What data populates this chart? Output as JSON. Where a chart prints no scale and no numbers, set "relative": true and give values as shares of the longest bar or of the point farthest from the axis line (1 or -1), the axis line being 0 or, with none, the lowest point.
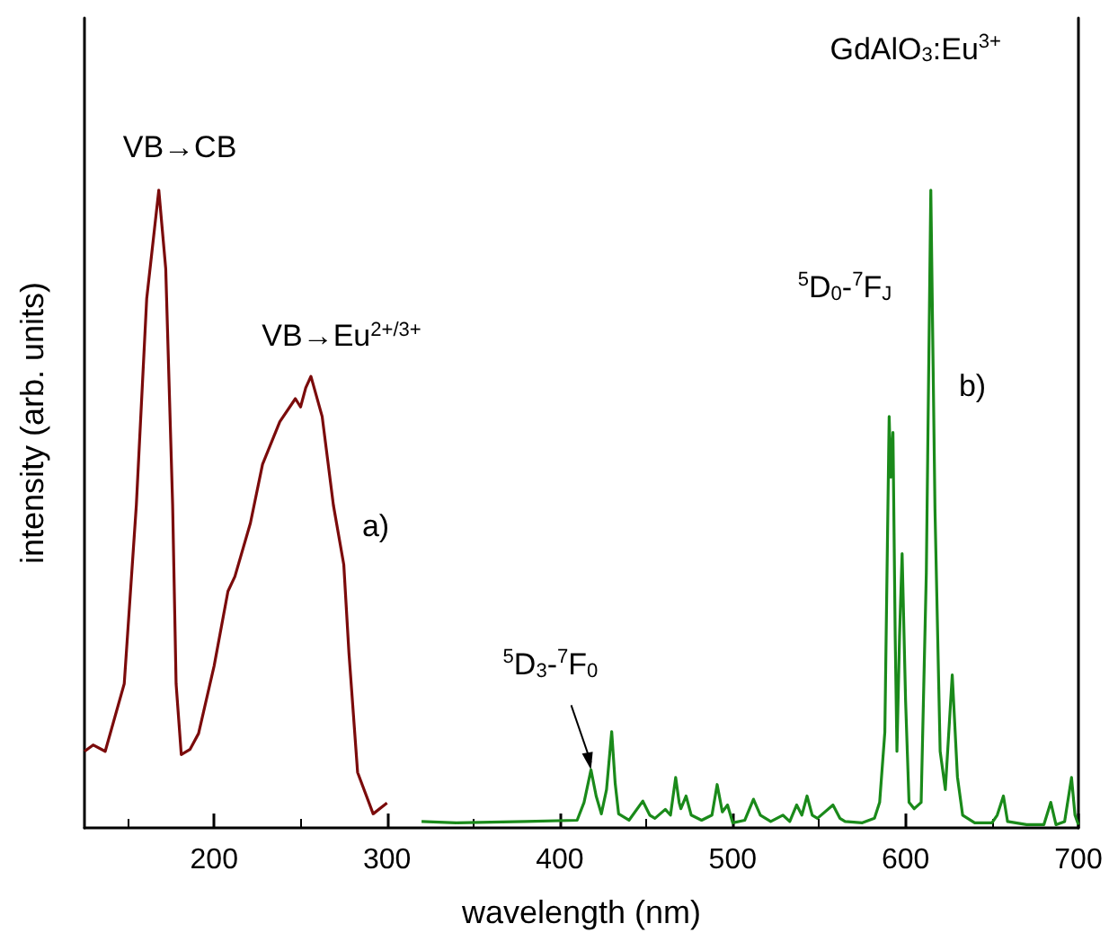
{
  "chart_data": {
    "type": "line",
    "title": "GdAlO$_{3}$:Eu$^{3+}$",
    "xlabel": "wavelength (nm)",
    "ylabel": "intensity (arb. units)",
    "relative": true,
    "xlim": [
      125,
      700
    ],
    "xticks": [
      200,
      300,
      400,
      500,
      600,
      700
    ],
    "grid": false,
    "marker": "none",
    "line_style": "solid",
    "series": [
      {
        "color": "#7b0b0b",
        "x": [
          125,
          130,
          137,
          148,
          155,
          161,
          168,
          172,
          176,
          178,
          181,
          186,
          191,
          200,
          208,
          212,
          221,
          228,
          238,
          247,
          250,
          253,
          256,
          262.5,
          269,
          275,
          278,
          283,
          292,
          300
        ],
        "values": [
          0.12,
          0.13,
          0.12,
          0.226,
          0.506,
          0.83,
          1.0,
          0.877,
          0.506,
          0.226,
          0.115,
          0.123,
          0.148,
          0.254,
          0.371,
          0.394,
          0.478,
          0.57,
          0.637,
          0.673,
          0.66,
          0.69,
          0.708,
          0.645,
          0.506,
          0.413,
          0.274,
          0.087,
          0.022,
          0.039
        ]
      },
      {
        "color": "#1a8a1a",
        "x": [
          320,
          340,
          380,
          410,
          414,
          418,
          421,
          424,
          427,
          430,
          432,
          434,
          440,
          448,
          452,
          455,
          461,
          464,
          467,
          469,
          470,
          473,
          476,
          482,
          488,
          491,
          494,
          497,
          500,
          507,
          512,
          516,
          522,
          529,
          533,
          537,
          540,
          543,
          546,
          549,
          558,
          562,
          565,
          575,
          582,
          585,
          588,
          590.5,
          591.5,
          592.7,
          594,
          595,
          596.5,
          598,
          600,
          602,
          605,
          609,
          612,
          614.6,
          617,
          620,
          623,
          627,
          630,
          633,
          640,
          650,
          653,
          656.6,
          659,
          670,
          680,
          684,
          687,
          692,
          696,
          698,
          700
        ],
        "values": [
          0.01,
          0.008,
          0.01,
          0.012,
          0.04,
          0.091,
          0.05,
          0.022,
          0.06,
          0.151,
          0.07,
          0.022,
          0.012,
          0.042,
          0.02,
          0.015,
          0.029,
          0.02,
          0.079,
          0.04,
          0.03,
          0.05,
          0.02,
          0.012,
          0.02,
          0.068,
          0.025,
          0.036,
          0.008,
          0.012,
          0.045,
          0.02,
          0.01,
          0.02,
          0.01,
          0.036,
          0.02,
          0.05,
          0.02,
          0.015,
          0.036,
          0.015,
          0.01,
          0.008,
          0.015,
          0.04,
          0.15,
          0.645,
          0.55,
          0.62,
          0.3,
          0.12,
          0.3,
          0.43,
          0.2,
          0.04,
          0.03,
          0.04,
          0.4,
          1.0,
          0.5,
          0.12,
          0.06,
          0.24,
          0.08,
          0.02,
          0.008,
          0.008,
          0.02,
          0.05,
          0.01,
          0.005,
          0.005,
          0.04,
          0.005,
          0.01,
          0.079,
          0.02,
          0.005
        ]
      }
    ],
    "annotations": [
      "VB→CB",
      "VB→Eu$^{2+/3+}$",
      "a)",
      {
        "text": "$^{5}$D$_{3}$-$^{7}$F$_{0}$",
        "x": 418,
        "y": 0.091
      },
      "$^{5}$D$_{0}$-$^{7}$F$_{J}$",
      "b)"
    ]
  }
}
